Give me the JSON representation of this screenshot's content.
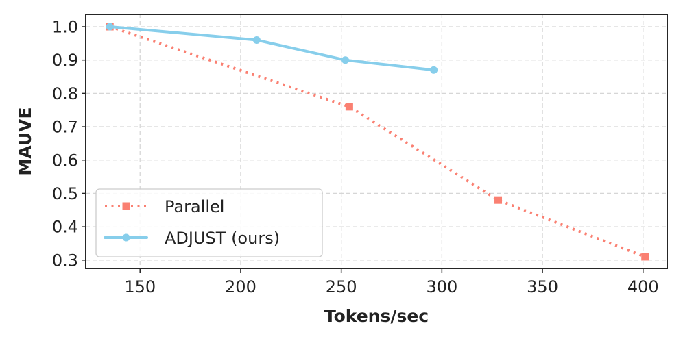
{
  "chart_data": {
    "type": "line",
    "xlabel": "Tokens/sec",
    "ylabel": "MAUVE",
    "xlim": [
      123,
      412
    ],
    "ylim": [
      0.275,
      1.037
    ],
    "xticks": [
      150,
      200,
      250,
      300,
      350,
      400
    ],
    "yticks": [
      0.3,
      0.4,
      0.5,
      0.6,
      0.7,
      0.8,
      0.9,
      1.0
    ],
    "xtick_labels": [
      "150",
      "200",
      "250",
      "300",
      "350",
      "400"
    ],
    "ytick_labels": [
      "0.3",
      "0.4",
      "0.5",
      "0.6",
      "0.7",
      "0.8",
      "0.9",
      "1.0"
    ],
    "grid": true,
    "legend_position": "lower-left",
    "series": [
      {
        "name": "Parallel",
        "color": "#fa8072",
        "line_style": "dotted",
        "marker": "square",
        "x": [
          135,
          254,
          328,
          401
        ],
        "y": [
          1.0,
          0.76,
          0.48,
          0.31
        ]
      },
      {
        "name": "ADJUST (ours)",
        "color": "#87ceeb",
        "line_style": "solid",
        "marker": "circle",
        "x": [
          135,
          208,
          252,
          296
        ],
        "y": [
          1.0,
          0.96,
          0.9,
          0.87
        ]
      }
    ]
  }
}
